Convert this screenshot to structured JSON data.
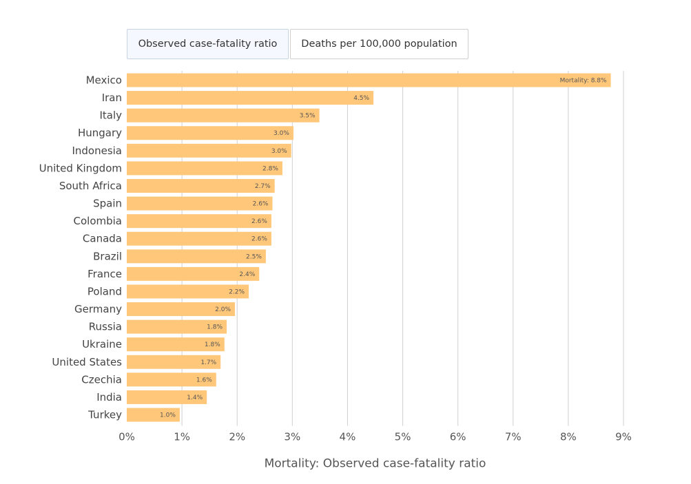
{
  "tabs": {
    "cfr_label": "Observed case-fatality ratio",
    "deaths_label": "Deaths per 100,000 population",
    "active": "cfr"
  },
  "colors": {
    "bar": "#ffc77a",
    "grid": "#d0d0d0"
  },
  "chart_data": {
    "type": "bar",
    "orientation": "horizontal",
    "categories": [
      "Mexico",
      "Iran",
      "Italy",
      "Hungary",
      "Indonesia",
      "United Kingdom",
      "South Africa",
      "Spain",
      "Colombia",
      "Canada",
      "Brazil",
      "France",
      "Poland",
      "Germany",
      "Russia",
      "Ukraine",
      "United States",
      "Czechia",
      "India",
      "Turkey"
    ],
    "values": [
      8.8,
      4.5,
      3.5,
      3.0,
      3.0,
      2.8,
      2.7,
      2.6,
      2.6,
      2.6,
      2.5,
      2.4,
      2.2,
      2.0,
      1.8,
      1.8,
      1.7,
      1.6,
      1.4,
      1.0
    ],
    "bar_lengths": [
      8.77,
      4.47,
      3.49,
      3.02,
      2.98,
      2.82,
      2.68,
      2.64,
      2.62,
      2.62,
      2.52,
      2.4,
      2.21,
      1.96,
      1.81,
      1.77,
      1.7,
      1.62,
      1.45,
      0.96
    ],
    "data_labels": [
      "Mortality: 8.8%",
      "4.5%",
      "3.5%",
      "3.0%",
      "3.0%",
      "2.8%",
      "2.7%",
      "2.6%",
      "2.6%",
      "2.6%",
      "2.5%",
      "2.4%",
      "2.2%",
      "2.0%",
      "1.8%",
      "1.8%",
      "1.7%",
      "1.6%",
      "1.4%",
      "1.0%"
    ],
    "xlabel": "Mortality: Observed case-fatality ratio",
    "ylabel": "",
    "xlim": [
      0,
      9
    ],
    "xticks": [
      0,
      1,
      2,
      3,
      4,
      5,
      6,
      7,
      8,
      9
    ],
    "xtick_labels": [
      "0%",
      "1%",
      "2%",
      "3%",
      "4%",
      "5%",
      "6%",
      "7%",
      "8%",
      "9%"
    ],
    "grid": true
  }
}
